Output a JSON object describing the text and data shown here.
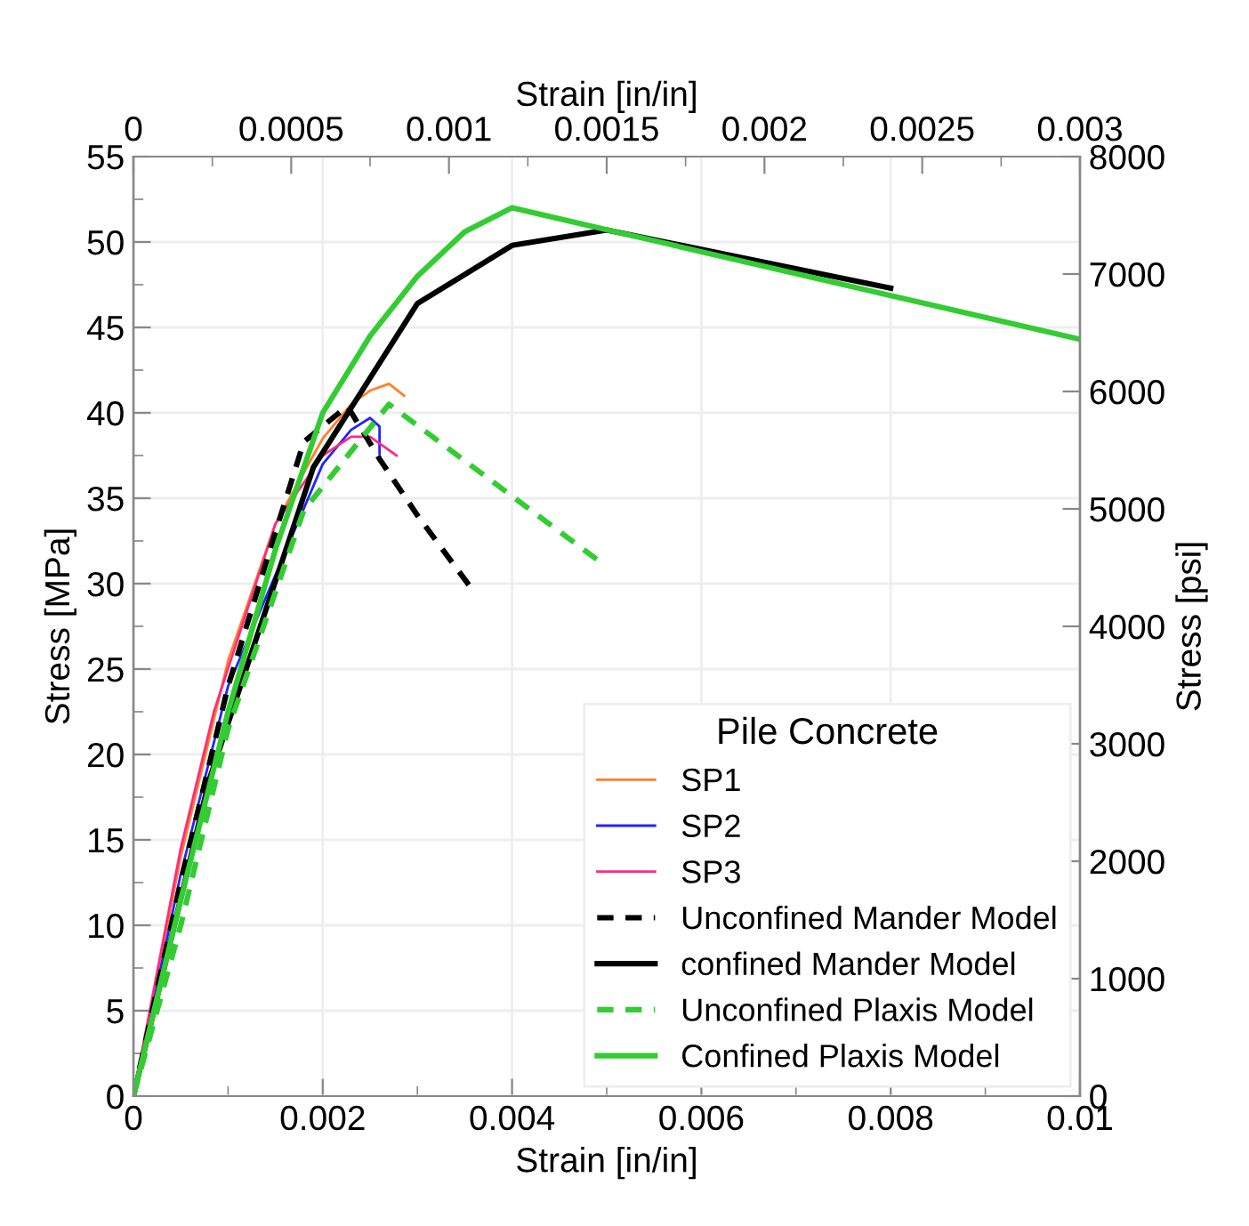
{
  "chart_data": {
    "type": "line",
    "xlabel": "Strain [in/in]",
    "ylabel": "Stress [MPa]",
    "x2label": "Strain [in/in]",
    "y2label": "Stress [psi]",
    "legend_title": "Pile Concrete",
    "xlim": [
      0,
      0.01
    ],
    "xticks": [
      0,
      0.002,
      0.004,
      0.006,
      0.008,
      0.01,
      {
        "value": 0.001,
        "label": null
      },
      {
        "value": 0.003,
        "label": null
      },
      {
        "value": 0.005,
        "label": null
      },
      {
        "value": 0.007,
        "label": null
      },
      {
        "value": 0.009,
        "label": null
      }
    ],
    "ylim": [
      0,
      55
    ],
    "yticks": [
      0,
      5,
      10,
      15,
      20,
      25,
      30,
      35,
      40,
      45,
      50,
      55,
      {
        "value": 2.5,
        "label": null
      },
      {
        "value": 7.5,
        "label": null
      },
      {
        "value": 12.5,
        "label": null
      },
      {
        "value": 17.5,
        "label": null
      },
      {
        "value": 22.5,
        "label": null
      },
      {
        "value": 27.5,
        "label": null
      },
      {
        "value": 32.5,
        "label": null
      },
      {
        "value": 37.5,
        "label": null
      },
      {
        "value": 42.5,
        "label": null
      },
      {
        "value": 47.5,
        "label": null
      },
      {
        "value": 52.5,
        "label": null
      }
    ],
    "x2lim": [
      0,
      0.003
    ],
    "x2ticks": [
      0,
      0.0005,
      0.001,
      0.0015,
      0.002,
      0.0025,
      0.003,
      {
        "value": 0.00025,
        "label": null
      },
      {
        "value": 0.00075,
        "label": null
      },
      {
        "value": 0.00125,
        "label": null
      },
      {
        "value": 0.00175,
        "label": null
      },
      {
        "value": 0.00225,
        "label": null
      },
      {
        "value": 0.00275,
        "label": null
      }
    ],
    "y2lim": [
      0,
      8000
    ],
    "y2ticks": [
      0,
      1000,
      2000,
      3000,
      4000,
      5000,
      6000,
      7000,
      8000
    ],
    "grid": true,
    "legend": "bottom right",
    "marker": "none",
    "series": [
      {
        "name": "SP1",
        "color": "#ff7f27",
        "x": [
          0,
          0.0005,
          0.001,
          0.0015,
          0.002,
          0.0023,
          0.0025,
          0.0027,
          0.00286
        ],
        "values": [
          0,
          14,
          25.5,
          33.5,
          38.5,
          40.5,
          41.3,
          41.7,
          41.0
        ]
      },
      {
        "name": "SP2",
        "color": "#2323ff",
        "x": [
          0,
          0.0005,
          0.001,
          0.002,
          0.0023,
          0.0025,
          0.0026,
          0.0026
        ],
        "values": [
          0,
          13,
          24,
          37,
          39,
          39.7,
          39.2,
          37.6
        ]
      },
      {
        "name": "SP3",
        "color": "#ff2a7f",
        "x": [
          0,
          0.0005,
          0.00085,
          0.0015,
          0.002,
          0.0023,
          0.0025,
          0.00278
        ],
        "values": [
          0,
          14.5,
          22.5,
          33.5,
          37.5,
          38.6,
          38.6,
          37.5
        ]
      },
      {
        "name": "Unconfined Mander Model",
        "color": "#000000",
        "line_style": "dashed",
        "x": [
          0,
          0.0005,
          0.001,
          0.0015,
          0.0018,
          0.00226,
          0.0026,
          0.003,
          0.0036
        ],
        "values": [
          0,
          12.5,
          24,
          33,
          38.3,
          40.4,
          37.3,
          34,
          29.5
        ]
      },
      {
        "name": "confined Mander Model",
        "color": "#000000",
        "x": [
          0,
          0.0008,
          0.0019,
          0.003,
          0.004,
          0.005,
          0.008
        ],
        "values": [
          0,
          18.5,
          36.8,
          46.4,
          49.8,
          50.7,
          47.3
        ]
      },
      {
        "name": "Unconfined Plaxis Model",
        "color": "#33cc33",
        "line_style": "dashed",
        "x": [
          0,
          0.0005,
          0.001,
          0.0018,
          0.0027,
          0.0049
        ],
        "values": [
          0,
          10,
          21.5,
          34.3,
          40.5,
          31.4
        ]
      },
      {
        "name": "Confined Plaxis Model",
        "color": "#33cc33",
        "x": [
          0,
          0.0005,
          0.001,
          0.0015,
          0.002,
          0.0025,
          0.003,
          0.0035,
          0.004,
          0.01
        ],
        "values": [
          0,
          11.5,
          22.5,
          32,
          40,
          44.5,
          48,
          50.6,
          52,
          44.3
        ]
      }
    ]
  }
}
